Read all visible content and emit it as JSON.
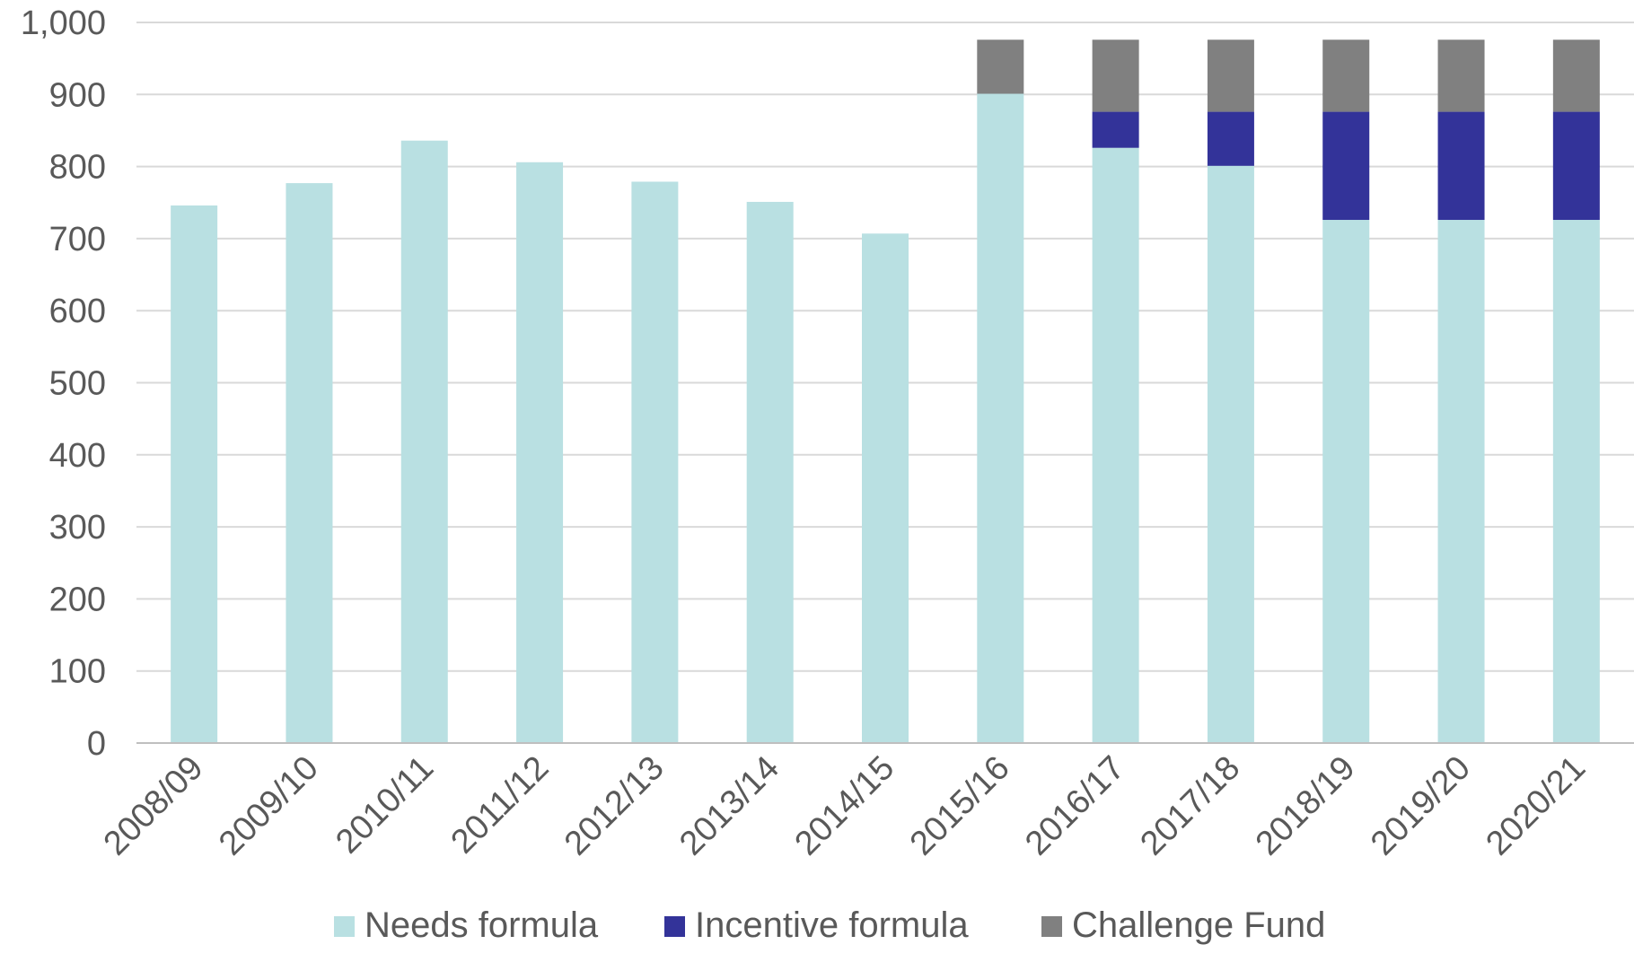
{
  "chart_data": {
    "type": "bar",
    "stacked": true,
    "categories": [
      "2008/09",
      "2009/10",
      "2010/11",
      "2011/12",
      "2012/13",
      "2013/14",
      "2014/15",
      "2015/16",
      "2016/17",
      "2017/18",
      "2018/19",
      "2019/20",
      "2020/21"
    ],
    "series": [
      {
        "name": "Needs formula",
        "color": "#b9e0e2",
        "values": [
          746,
          777,
          836,
          806,
          779,
          751,
          707,
          901,
          826,
          801,
          726,
          726,
          726
        ]
      },
      {
        "name": "Incentive formula",
        "color": "#333399",
        "values": [
          0,
          0,
          0,
          0,
          0,
          0,
          0,
          0,
          50,
          75,
          150,
          150,
          150
        ]
      },
      {
        "name": "Challenge Fund",
        "color": "#808080",
        "values": [
          0,
          0,
          0,
          0,
          0,
          0,
          0,
          75,
          100,
          100,
          100,
          100,
          100
        ]
      }
    ],
    "y_ticks": [
      "0",
      "100",
      "200",
      "300",
      "400",
      "500",
      "600",
      "700",
      "800",
      "900",
      "1,000"
    ],
    "ylim": [
      0,
      1000
    ],
    "grid": true,
    "legend_position": "bottom",
    "gridline_color": "#d9d9d9",
    "axis_color": "#bfbfbf"
  }
}
